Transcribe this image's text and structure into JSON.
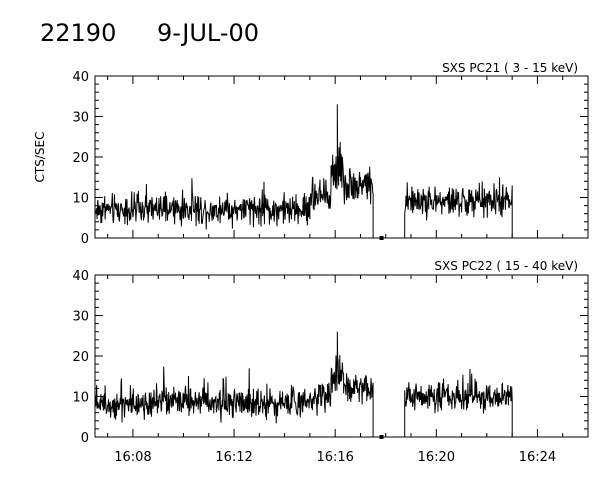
{
  "header": {
    "id": "22190",
    "date": "9-JUL-00"
  },
  "chart_data": [
    {
      "type": "line",
      "title": "SXS PC21  (  3 - 15 keV)",
      "ylabel": "CTS/SEC",
      "xlabel": "",
      "ylim": [
        0,
        40
      ],
      "yticks": [
        0,
        10,
        20,
        30,
        40
      ],
      "xlim_minutes": [
        966.5,
        986.0
      ],
      "xticks": [
        "16:08",
        "16:12",
        "16:16",
        "16:20",
        "16:24"
      ],
      "series": [
        {
          "values_description_free": true,
          "x_start": "16:06:30",
          "x_end": "16:23:00",
          "gap": [
            "16:17:30",
            "16:18:45"
          ],
          "segments": [
            {
              "from": "16:06:30",
              "to": "16:15:00",
              "mean": 7.0,
              "noise": 3.2
            },
            {
              "from": "16:15:00",
              "to": "16:15:50",
              "mean": 10.0,
              "noise": 4.0
            },
            {
              "from": "16:15:50",
              "to": "16:16:20",
              "mean": 17.0,
              "noise": 5.0,
              "peak": 33
            },
            {
              "from": "16:16:20",
              "to": "16:17:30",
              "mean": 13.0,
              "noise": 3.5
            },
            {
              "from": "16:18:45",
              "to": "16:23:00",
              "mean": 9.0,
              "noise": 3.3
            }
          ],
          "zero_mark": "16:17:50"
        }
      ]
    },
    {
      "type": "line",
      "title": "SXS PC22  ( 15 - 40 keV)",
      "ylabel": "",
      "xlabel": "",
      "ylim": [
        0,
        40
      ],
      "yticks": [
        0,
        10,
        20,
        30,
        40
      ],
      "xlim_minutes": [
        966.5,
        986.0
      ],
      "xticks": [
        "16:08",
        "16:12",
        "16:16",
        "16:20",
        "16:24"
      ],
      "series": [
        {
          "x_start": "16:06:30",
          "x_end": "16:23:00",
          "gap": [
            "16:17:30",
            "16:18:45"
          ],
          "segments": [
            {
              "from": "16:06:30",
              "to": "16:15:00",
              "mean": 8.5,
              "noise": 3.2
            },
            {
              "from": "16:15:00",
              "to": "16:15:50",
              "mean": 10.5,
              "noise": 3.8
            },
            {
              "from": "16:15:50",
              "to": "16:16:20",
              "mean": 15.0,
              "noise": 4.5,
              "peak": 26
            },
            {
              "from": "16:16:20",
              "to": "16:17:30",
              "mean": 12.0,
              "noise": 3.0
            },
            {
              "from": "16:18:45",
              "to": "16:23:00",
              "mean": 10.0,
              "noise": 3.0
            }
          ],
          "zero_mark": "16:17:50"
        }
      ]
    }
  ]
}
